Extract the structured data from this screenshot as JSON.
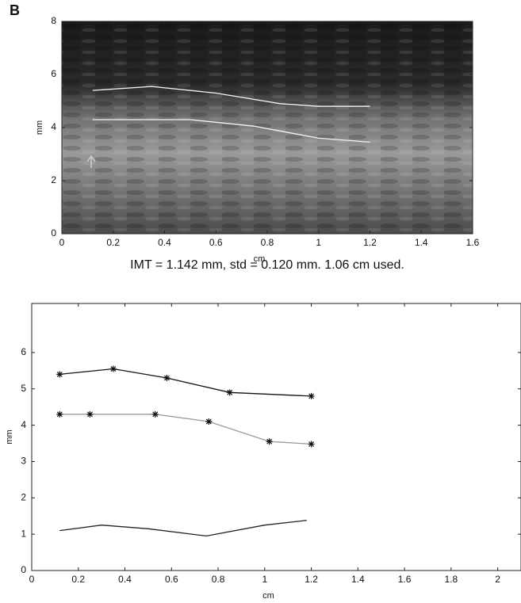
{
  "panel_label": "B",
  "chart_data": [
    {
      "type": "line",
      "xlabel": "cm",
      "ylabel": "mm",
      "caption": "IMT = 1.142 mm, std = 0.120 mm. 1.06 cm used.",
      "xlim": [
        0,
        1.6
      ],
      "ylim": [
        0,
        8
      ],
      "xticks": [
        0,
        0.2,
        0.4,
        0.6,
        0.8,
        1,
        1.2,
        1.4,
        1.6
      ],
      "yticks": [
        0,
        2,
        4,
        6,
        8
      ],
      "markers": false,
      "background": "ultrasound",
      "series": [
        {
          "color": "#f4f4f4",
          "x": [
            0.12,
            0.35,
            0.6,
            0.85,
            1.0,
            1.2
          ],
          "values": [
            5.4,
            5.55,
            5.3,
            4.9,
            4.8,
            4.8
          ]
        },
        {
          "color": "#f4f4f4",
          "x": [
            0.12,
            0.5,
            0.75,
            1.0,
            1.2
          ],
          "values": [
            4.3,
            4.3,
            4.05,
            3.6,
            3.45
          ]
        }
      ]
    },
    {
      "type": "line",
      "xlabel": "cm",
      "ylabel": "mm",
      "xlim": [
        0,
        2.1
      ],
      "ylim": [
        0,
        7.35
      ],
      "xticks": [
        0,
        0.2,
        0.4,
        0.6,
        0.8,
        1,
        1.2,
        1.4,
        1.6,
        1.8,
        2
      ],
      "yticks": [
        0,
        1,
        2,
        3,
        4,
        5,
        6
      ],
      "markers": true,
      "series": [
        {
          "color": "#111111",
          "x": [
            0.12,
            0.35,
            0.58,
            0.85,
            1.2
          ],
          "values": [
            5.4,
            5.55,
            5.3,
            4.9,
            4.8
          ]
        },
        {
          "color": "#9a9a9a",
          "x": [
            0.12,
            0.25,
            0.53,
            0.76,
            1.02,
            1.2
          ],
          "values": [
            4.3,
            4.3,
            4.3,
            4.1,
            3.55,
            3.48
          ]
        },
        {
          "color": "#222222",
          "markers": false,
          "x": [
            0.12,
            0.3,
            0.5,
            0.75,
            1.0,
            1.18
          ],
          "values": [
            1.1,
            1.25,
            1.15,
            0.95,
            1.25,
            1.38
          ]
        }
      ]
    }
  ]
}
